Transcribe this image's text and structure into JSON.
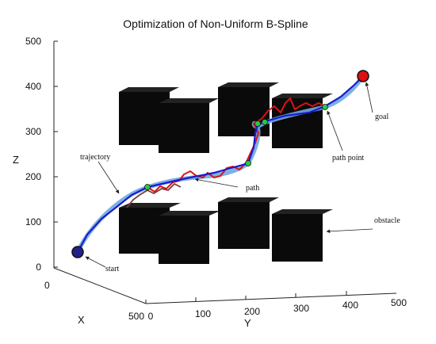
{
  "chart_data": {
    "type": "line3d",
    "title": "Optimization of Non-Uniform B-Spline",
    "xlabel": "X",
    "ylabel": "Y",
    "zlabel": "Z",
    "xlim": [
      0,
      500
    ],
    "ylim": [
      0,
      500
    ],
    "zlim": [
      0,
      500
    ],
    "xticks": [
      "0",
      "500"
    ],
    "yticks": [
      "0",
      "100",
      "200",
      "300",
      "400",
      "500"
    ],
    "zticks": [
      "0",
      "100",
      "200",
      "300",
      "400",
      "500"
    ],
    "grid": false,
    "series": [
      {
        "name": "trajectory",
        "color": "#6fa9e0",
        "style": "thick-smooth"
      },
      {
        "name": "path",
        "color": "#1a1ad0",
        "style": "polyline"
      },
      {
        "color": "#dd1111",
        "style": "jagged"
      },
      {
        "color": "#7a3a3a",
        "style": "jagged"
      }
    ],
    "annotations": [
      {
        "text": "start"
      },
      {
        "text": "goal"
      },
      {
        "text": "trajectory"
      },
      {
        "text": "path"
      },
      {
        "text": "path point"
      },
      {
        "text": "obstacle"
      }
    ],
    "markers": {
      "start_color": "#22228a",
      "goal_color": "#dd1111",
      "path_point_color": "#22cc44"
    },
    "obstacle_color": "#0a0a0a"
  }
}
